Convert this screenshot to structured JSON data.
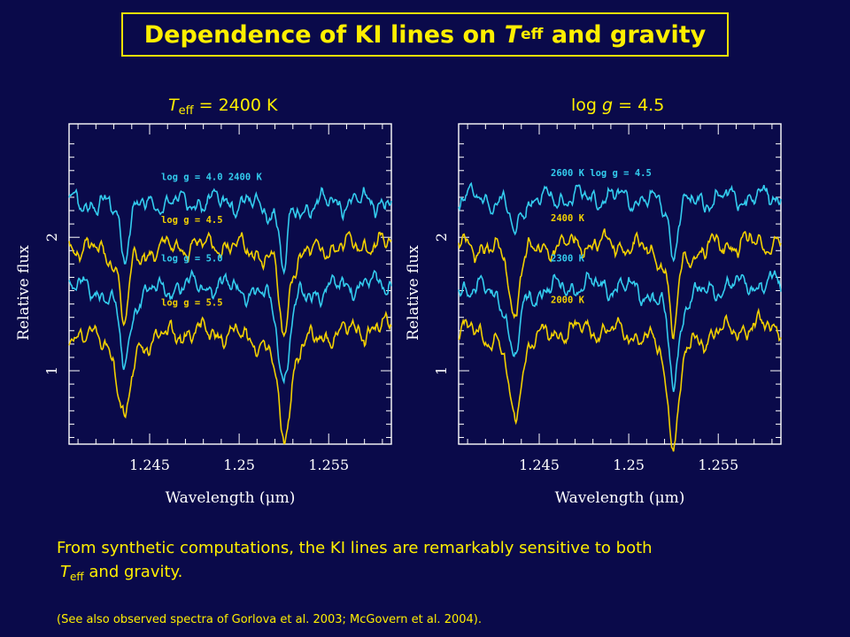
{
  "title": {
    "prefix": "Dependence of KI lines on ",
    "var": "T",
    "sub": "eff",
    "suffix": " and gravity"
  },
  "panel_headers": {
    "left": {
      "var": "T",
      "sub": "eff",
      "text": " = 2400 K"
    },
    "right": {
      "prefix": "log ",
      "var": "g",
      "text": " = 4.5"
    }
  },
  "caption": {
    "line1": "From synthetic computations, the KI lines are remarkably sensitive to both",
    "var": "T",
    "sub": "eff",
    "line2_rest": " and gravity."
  },
  "note": "(See also observed spectra of Gorlova et al. 2003; McGovern et al. 2004).",
  "colors": {
    "background": "#0a0a4a",
    "text": "#ffef00",
    "axes": "#ffffff",
    "cyan_series": "#33ccee",
    "yellow_series": "#f2d000"
  },
  "chart_data": [
    {
      "type": "line",
      "title": "",
      "xlabel": "Wavelength (μm)",
      "ylabel": "Relative flux",
      "xlim": [
        1.2405,
        1.2585
      ],
      "ylim": [
        0.45,
        2.85
      ],
      "xticks": [
        1.245,
        1.25,
        1.255
      ],
      "xtick_labels": [
        "1.245",
        "1.25",
        "1.255"
      ],
      "yticks": [
        1,
        2
      ],
      "ytick_labels": [
        "1",
        "2"
      ],
      "line_centers": [
        1.2436,
        1.2525
      ],
      "series": [
        {
          "name": "log g = 4.0   2400 K",
          "color": "#33ccee",
          "continuum": 2.27,
          "depths": [
            0.42,
            0.55
          ],
          "noise_seed": 3
        },
        {
          "name": "log g = 4.5",
          "color": "#f2d000",
          "continuum": 1.95,
          "depths": [
            0.6,
            0.72
          ],
          "noise_seed": 7
        },
        {
          "name": "log g = 5.0",
          "color": "#33ccee",
          "continuum": 1.66,
          "depths": [
            0.62,
            0.74
          ],
          "noise_seed": 11
        },
        {
          "name": "log g = 5.5",
          "color": "#f2d000",
          "continuum": 1.33,
          "depths": [
            0.72,
            0.84
          ],
          "noise_seed": 19
        }
      ]
    },
    {
      "type": "line",
      "title": "",
      "xlabel": "Wavelength (μm)",
      "ylabel": "Relative flux",
      "xlim": [
        1.2405,
        1.2585
      ],
      "ylim": [
        0.45,
        2.85
      ],
      "xticks": [
        1.245,
        1.25,
        1.255
      ],
      "xtick_labels": [
        "1.245",
        "1.25",
        "1.255"
      ],
      "yticks": [
        1,
        2
      ],
      "ytick_labels": [
        "1",
        "2"
      ],
      "line_centers": [
        1.2436,
        1.2525
      ],
      "series": [
        {
          "name": "2600 K   log g = 4.5",
          "color": "#33ccee",
          "continuum": 2.3,
          "depths": [
            0.32,
            0.44
          ],
          "noise_seed": 5
        },
        {
          "name": "2400 K",
          "color": "#f2d000",
          "continuum": 1.96,
          "depths": [
            0.55,
            0.7
          ],
          "noise_seed": 9
        },
        {
          "name": "2300 K",
          "color": "#33ccee",
          "continuum": 1.66,
          "depths": [
            0.6,
            0.74
          ],
          "noise_seed": 13
        },
        {
          "name": "2000 K",
          "color": "#f2d000",
          "continuum": 1.35,
          "depths": [
            0.72,
            0.86
          ],
          "noise_seed": 23
        }
      ]
    }
  ]
}
